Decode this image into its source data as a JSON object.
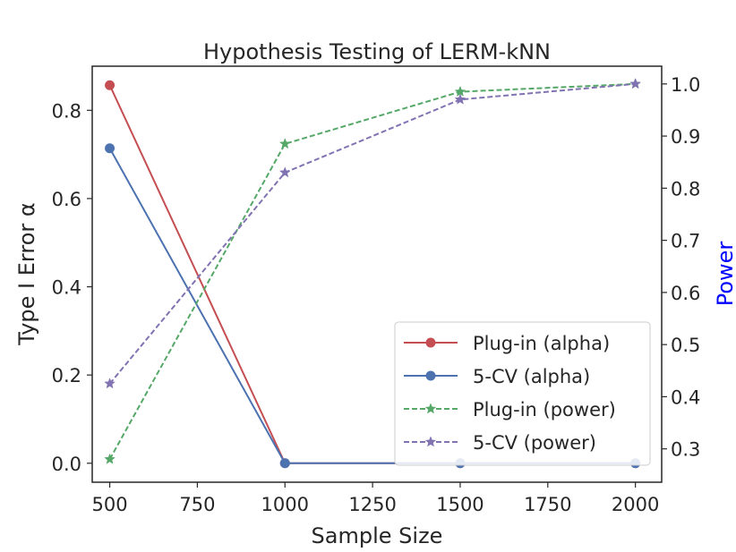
{
  "chart_data": {
    "type": "line",
    "title": "Hypothesis Testing of LERM-kNN",
    "xlabel": "Sample Size",
    "ylabel": "Type I Error α",
    "ylabel_right": "Power",
    "x": [
      500,
      1000,
      1500,
      2000
    ],
    "xlim": [
      450,
      2075
    ],
    "xticks": [
      "500",
      "750",
      "1000",
      "1250",
      "1500",
      "1750",
      "2000"
    ],
    "xtick_values": [
      500,
      750,
      1000,
      1250,
      1500,
      1750,
      2000
    ],
    "ylim": [
      -0.043,
      0.9
    ],
    "yticks": [
      "0.0",
      "0.2",
      "0.4",
      "0.6",
      "0.8"
    ],
    "ytick_values": [
      0,
      0.2,
      0.4,
      0.6,
      0.8
    ],
    "ylim_right": [
      0.236,
      1.034
    ],
    "yticks_right": [
      "0.3",
      "0.4",
      "0.5",
      "0.6",
      "0.7",
      "0.8",
      "0.9",
      "1.0"
    ],
    "ytick_values_right": [
      0.3,
      0.4,
      0.5,
      0.6,
      0.7,
      0.8,
      0.9,
      1.0
    ],
    "grid": false,
    "legend_position": "lower-right",
    "series": [
      {
        "name": "Plug-in (alpha)",
        "axis": "left",
        "values": [
          0.857,
          0,
          0,
          0
        ],
        "color": "#c44e52",
        "dash": false,
        "marker": "circle"
      },
      {
        "name": "5-CV (alpha)",
        "axis": "left",
        "values": [
          0.714,
          0,
          0,
          0
        ],
        "color": "#4c72b0",
        "dash": false,
        "marker": "circle"
      },
      {
        "name": "Plug-in (power)",
        "axis": "right",
        "values": [
          0.28,
          0.885,
          0.985,
          1.0
        ],
        "color": "#55a868",
        "dash": true,
        "marker": "star"
      },
      {
        "name": "5-CV (power)",
        "axis": "right",
        "values": [
          0.425,
          0.83,
          0.97,
          1.0
        ],
        "color": "#8172b2",
        "dash": true,
        "marker": "star"
      }
    ],
    "colors": {
      "text": "#262626",
      "right_label": "#0000ff",
      "axes": "#262626"
    }
  }
}
